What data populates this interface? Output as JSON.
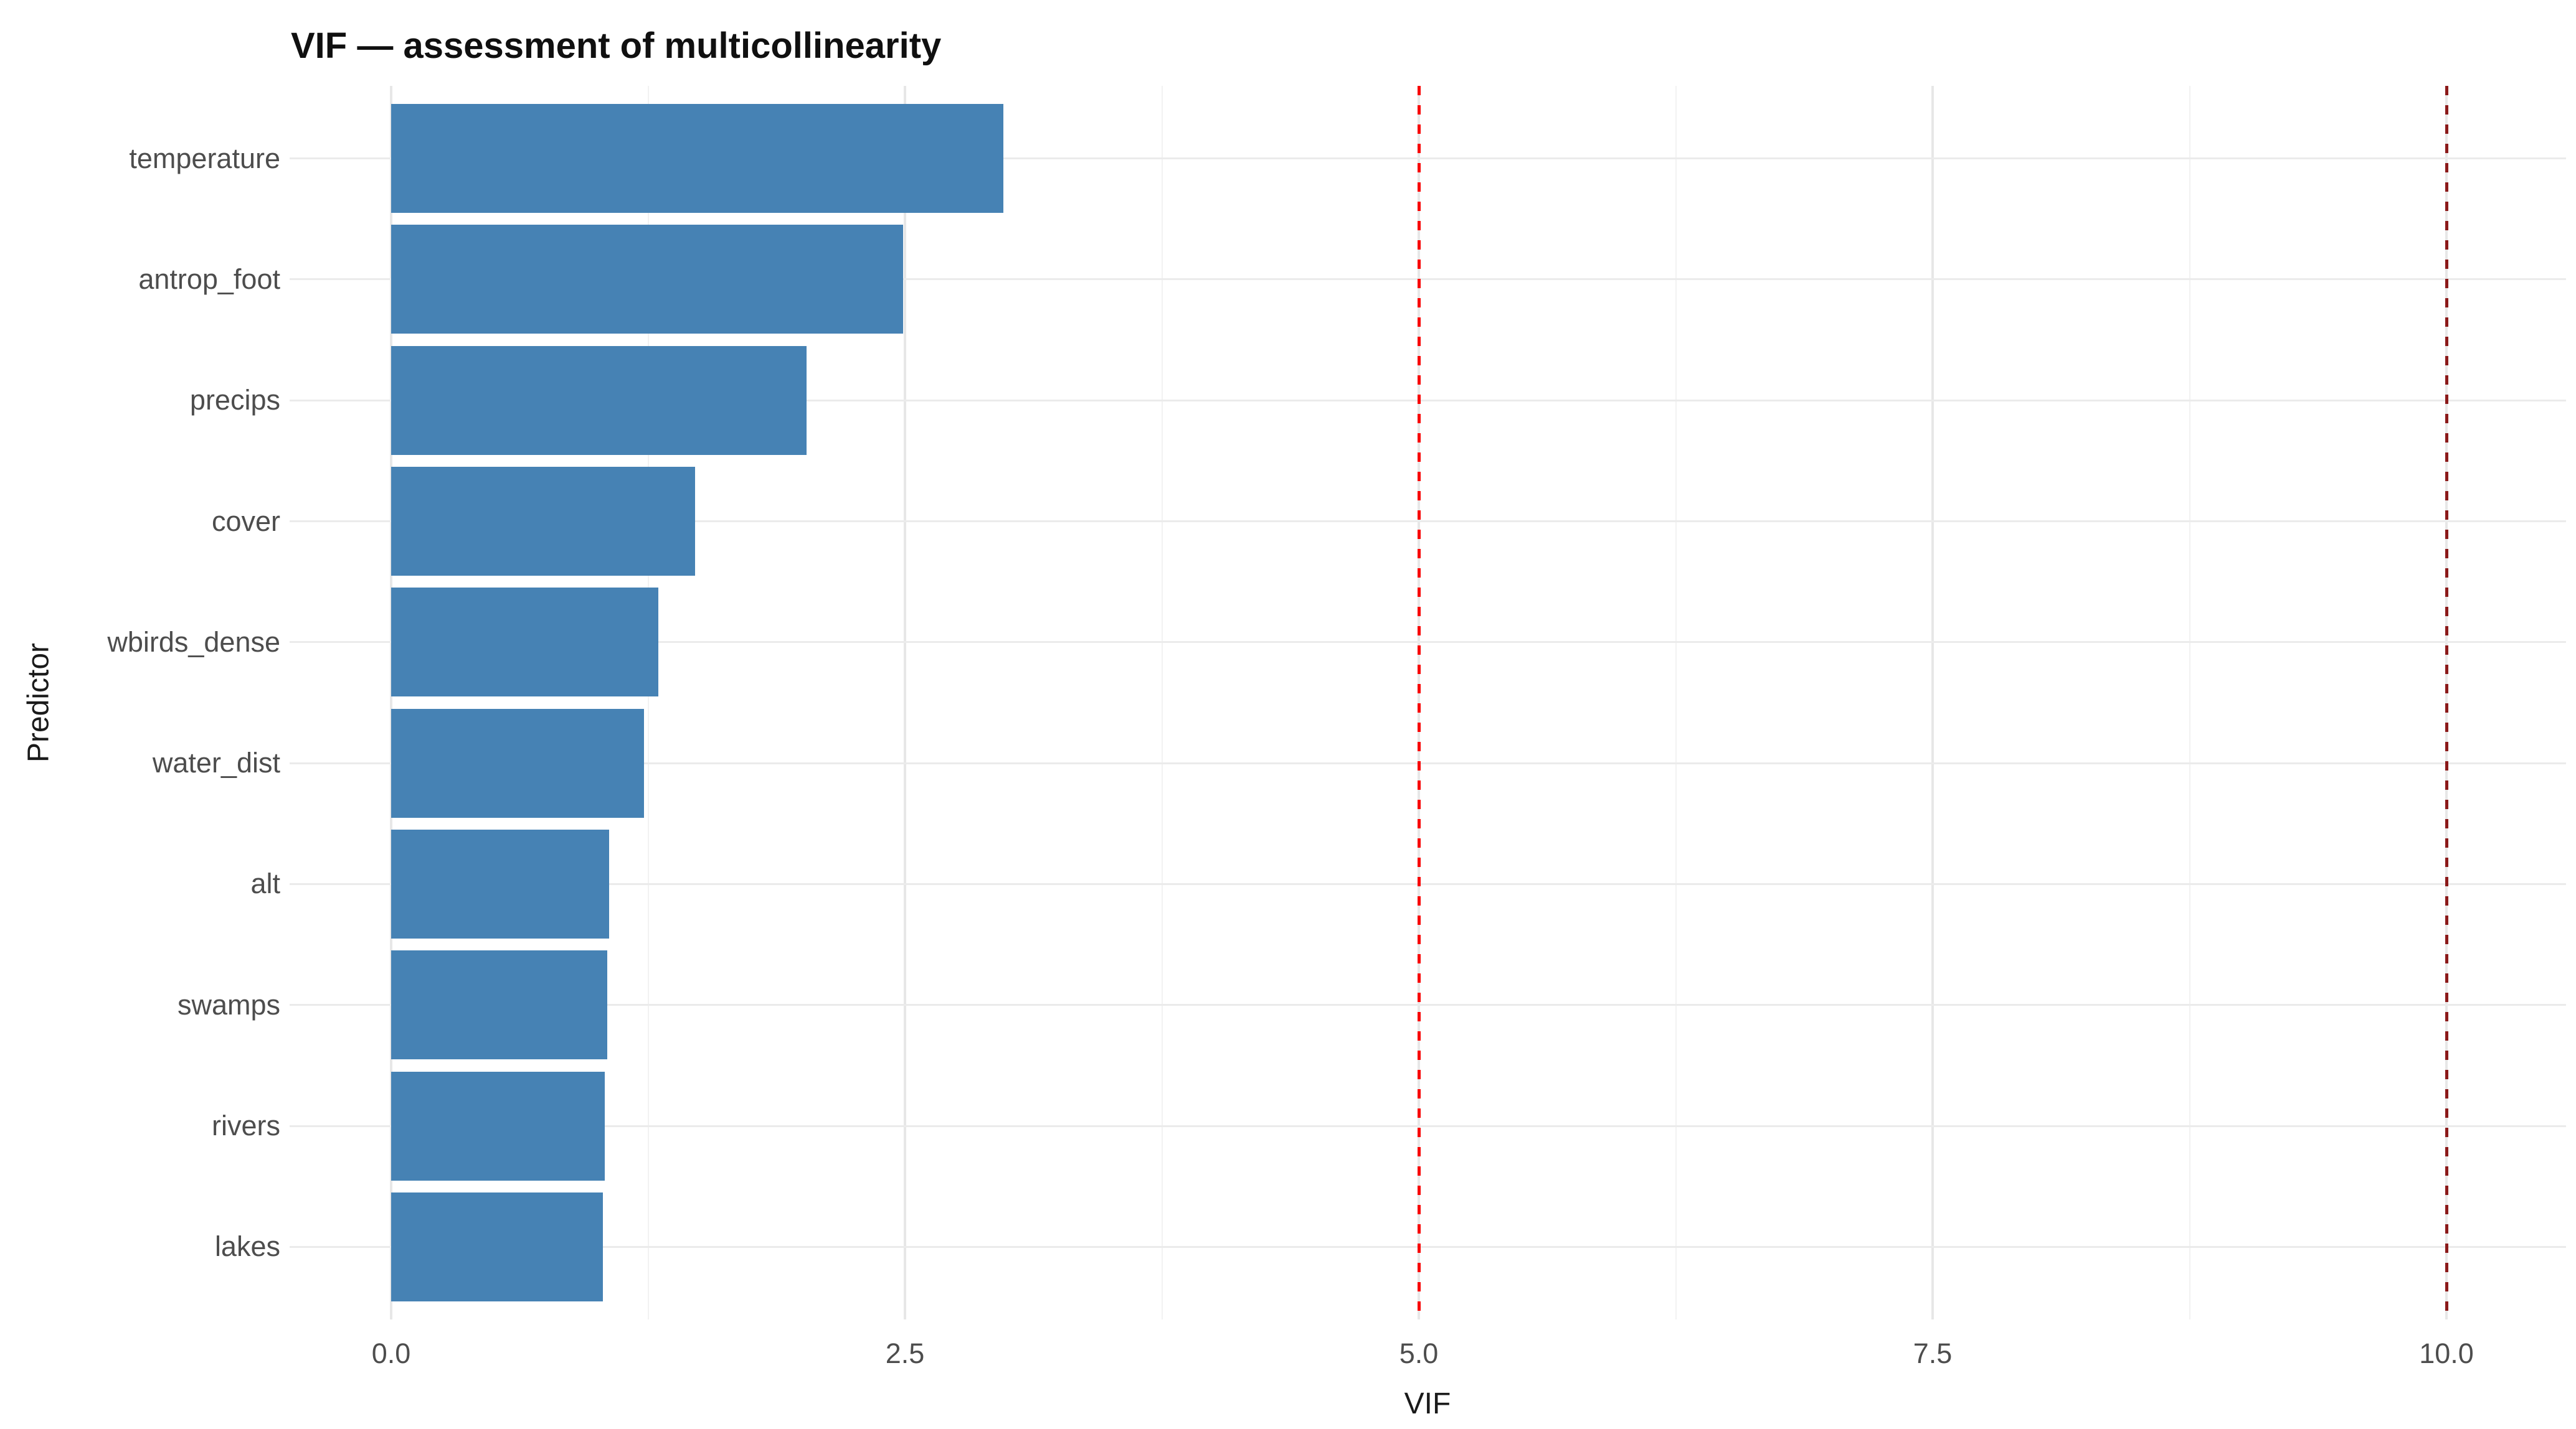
{
  "chart_data": {
    "type": "bar",
    "orientation": "horizontal",
    "title": "VIF — assessment of multicollinearity",
    "xlabel": "VIF",
    "ylabel": "Predictor",
    "categories": [
      "temperature",
      "antrop_foot",
      "precips",
      "cover",
      "wbirds_dense",
      "water_dist",
      "alt",
      "swamps",
      "rivers",
      "lakes"
    ],
    "values": [
      2.98,
      2.49,
      2.02,
      1.48,
      1.3,
      1.23,
      1.06,
      1.05,
      1.04,
      1.03
    ],
    "bar_color": "#4682B4",
    "xlim": [
      -0.5,
      10.6
    ],
    "x_ticks": [
      {
        "value": 0,
        "label": "0.0"
      },
      {
        "value": 2.5,
        "label": "2.5"
      },
      {
        "value": 5,
        "label": "5.0"
      },
      {
        "value": 7.5,
        "label": "7.5"
      },
      {
        "value": 10,
        "label": "10.0"
      }
    ],
    "x_minor_ticks": [
      1.25,
      3.75,
      6.25,
      8.75
    ],
    "reference_lines": [
      {
        "value": 5,
        "color": "#F80000",
        "style": "dashed"
      },
      {
        "value": 10,
        "color": "#8B1A1A",
        "style": "dashed"
      }
    ],
    "grid": true,
    "legend": false,
    "background": "#FFFFFF"
  }
}
